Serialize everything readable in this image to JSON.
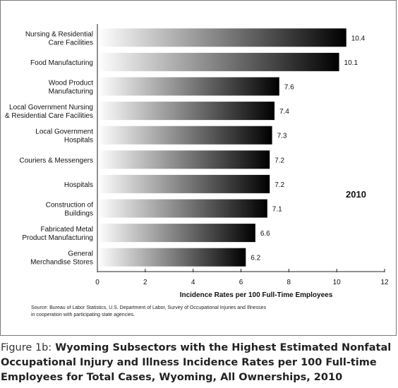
{
  "chart_data": {
    "type": "bar",
    "orientation": "horizontal",
    "categories": [
      [
        "Nursing & Residential",
        "Care Facilities"
      ],
      [
        "Food Manufacturing"
      ],
      [
        "Wood Product",
        "Manufacturing"
      ],
      [
        "Local Government Nursing",
        "& Residential Care Facilities"
      ],
      [
        "Local Government",
        "Hospitals"
      ],
      [
        "Couriers & Messengers"
      ],
      [
        "Hospitals"
      ],
      [
        "Construction of",
        "Buildings"
      ],
      [
        "Fabricated Metal",
        "Product Manufacturing"
      ],
      [
        "General",
        "Merchandise Stores"
      ]
    ],
    "values": [
      10.4,
      10.1,
      7.6,
      7.4,
      7.3,
      7.2,
      7.2,
      7.1,
      6.6,
      6.2
    ],
    "value_labels": [
      "10.4",
      "10.1",
      "7.6",
      "7.4",
      "7.3",
      "7.2",
      "7.2",
      "7.1",
      "6.6",
      "6.2"
    ],
    "xticks": [
      0,
      2,
      4,
      6,
      8,
      10,
      12
    ],
    "xlim": [
      0,
      12
    ],
    "xlabel": "Incidence Rates per 100 Full-Time Employees",
    "annotation": "2010",
    "grid": false,
    "bar_gradient": [
      "#ffffff",
      "#000000"
    ]
  },
  "source_note": [
    "Source: Bureau of Labor Statistics, U.S. Department of Labor, Survey of Occupational Injuries and Illnesses",
    "in cooperation with participating state agencies."
  ],
  "caption": {
    "figure_label": "Figure 1b:",
    "title": " Wyoming Subsectors with the Highest Estimated Nonfatal Occupational Injury and Illness Incidence Rates per 100 Full-time Employees for Total Cases, Wyoming, All Ownerships, 2010"
  }
}
